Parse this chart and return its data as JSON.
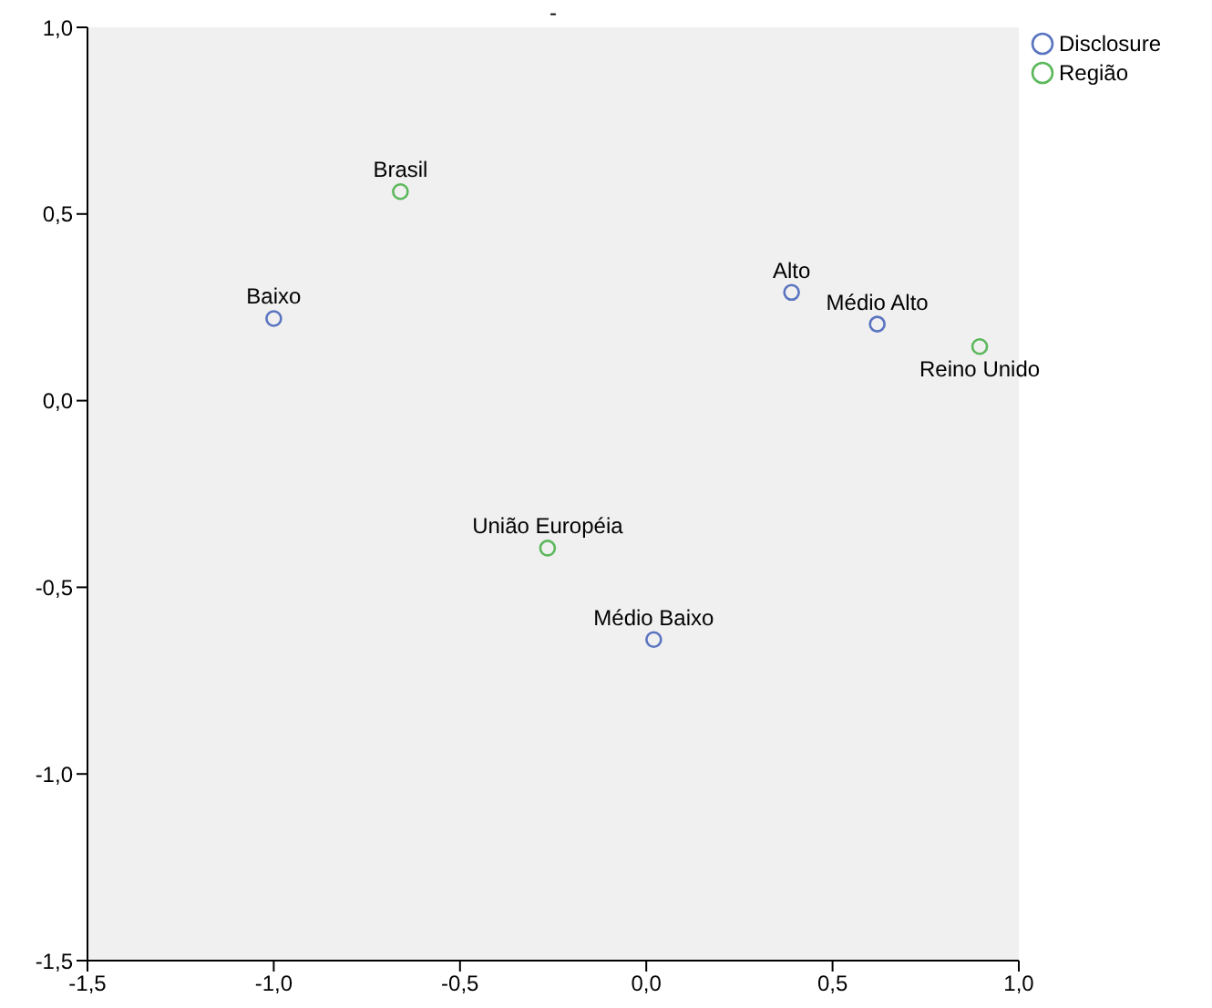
{
  "chart_data": {
    "type": "scatter",
    "title": "-",
    "series": [
      {
        "name": "Disclosure",
        "color": "#5a74c0",
        "x": [
          -1.0,
          0.39,
          0.62,
          0.02
        ],
        "values": [
          0.22,
          0.29,
          0.205,
          -0.64
        ]
      },
      {
        "name": "Região",
        "color": "#5cb85c",
        "x": [
          -0.66,
          0.895,
          -0.265
        ],
        "values": [
          0.56,
          0.145,
          -0.395
        ]
      }
    ],
    "annotations": [
      {
        "text": "Baixo",
        "x": -1.0,
        "y": 0.22
      },
      {
        "text": "Alto",
        "x": 0.39,
        "y": 0.29
      },
      {
        "text": "Médio Alto",
        "x": 0.62,
        "y": 0.205
      },
      {
        "text": "Médio Baixo",
        "x": 0.02,
        "y": -0.64
      },
      {
        "text": "Brasil",
        "x": -0.66,
        "y": 0.56
      },
      {
        "text": "Reino Unido",
        "x": 0.895,
        "y": 0.145
      },
      {
        "text": "União Européia",
        "x": -0.265,
        "y": -0.395
      }
    ],
    "xlim": [
      -1.5,
      1.0
    ],
    "xticks": [
      {
        "value": -1.5,
        "label": "-1,5"
      },
      {
        "value": -1.0,
        "label": "-1,0"
      },
      {
        "value": -0.5,
        "label": "-0,5"
      },
      {
        "value": 0,
        "label": "0,0"
      },
      {
        "value": 0.5,
        "label": "0,5"
      },
      {
        "value": 1.0,
        "label": "1,0"
      }
    ],
    "ylim": [
      -1.5,
      1.0
    ],
    "yticks": [
      {
        "value": -1.5,
        "label": "-1,5"
      },
      {
        "value": -1.0,
        "label": "-1,0"
      },
      {
        "value": -0.5,
        "label": "-0,5"
      },
      {
        "value": 0,
        "label": "0,0"
      },
      {
        "value": 0.5,
        "label": "0,5"
      },
      {
        "value": 1.0,
        "label": "1,0"
      }
    ],
    "grid": false,
    "legend": "top right",
    "marker": "circle"
  }
}
